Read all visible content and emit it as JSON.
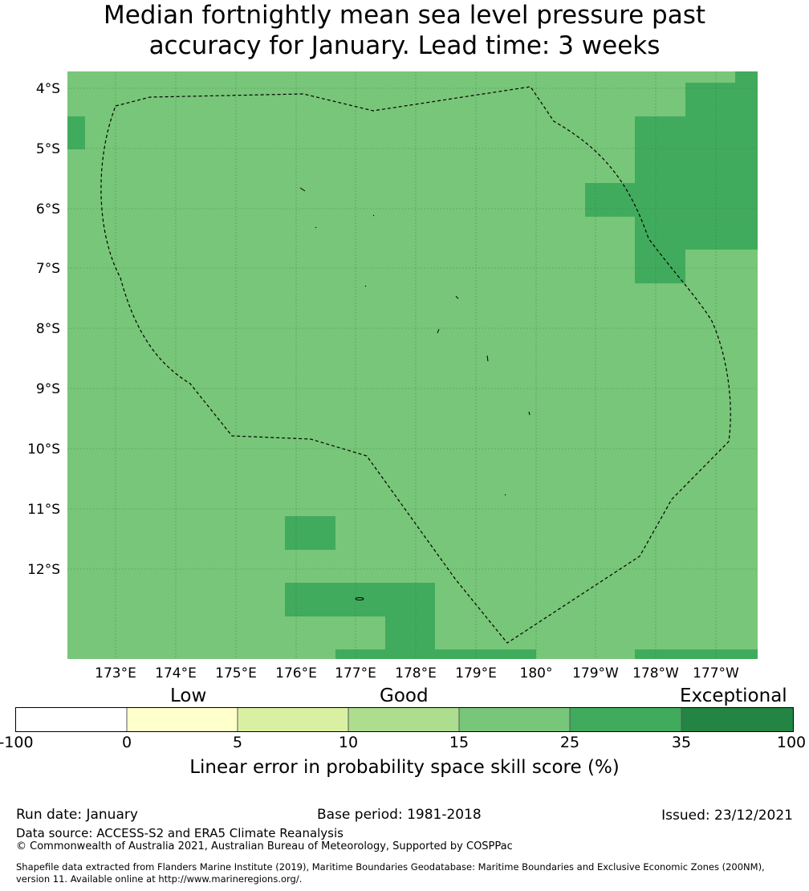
{
  "title": {
    "line1": "Median fortnightly mean sea level pressure past",
    "line2": "accuracy for January. Lead time: 3 weeks"
  },
  "map": {
    "lat_labels": [
      "4°S",
      "5°S",
      "6°S",
      "7°S",
      "8°S",
      "9°S",
      "10°S",
      "11°S",
      "12°S"
    ],
    "lon_labels": [
      "173°E",
      "174°E",
      "175°E",
      "176°E",
      "177°E",
      "178°E",
      "179°E",
      "180°",
      "179°W",
      "178°W",
      "177°W"
    ],
    "base_color": "#78c679",
    "high_color": "#41ab5d",
    "boundary_name": "tuvalu-eez-boundary"
  },
  "colorbar": {
    "category_labels": [
      "Low",
      "Good",
      "Exceptional"
    ],
    "ticks": [
      "-100",
      "0",
      "5",
      "10",
      "15",
      "25",
      "35",
      "100"
    ],
    "colors": [
      "#ffffff",
      "#ffffcc",
      "#d9f0a3",
      "#addd8e",
      "#78c679",
      "#41ab5d",
      "#238443"
    ],
    "title": "Linear error in probability space skill score (%)"
  },
  "footer": {
    "run_date": "Run date: January",
    "base_period": "Base period: 1981-2018",
    "issued": "Issued: 23/12/2021",
    "data_source": "Data source: ACCESS-S2 and ERA5 Climate Reanalysis",
    "copyright": "© Commonwealth of Australia 2021, Australian Bureau of Meteorology, Supported by COSPPac",
    "shapefile_line1": "Shapefile data extracted from Flanders Marine Institute (2019), Maritime Boundaries Geodatabase: Maritime Boundaries and Exclusive Economic Zones (200NM),",
    "shapefile_line2": "version 11. Available online at http://www.marineregions.org/."
  }
}
